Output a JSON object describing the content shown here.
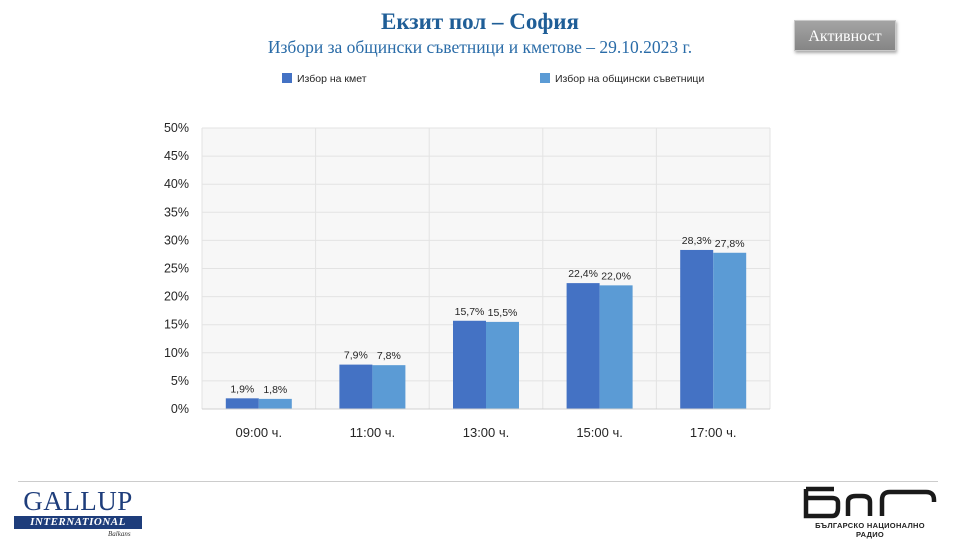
{
  "header": {
    "title": "Екзит пол – София",
    "subtitle": "Избори за общински съветници и кметове – 29.10.2023 г."
  },
  "activity_button": {
    "label": "Активност"
  },
  "chart_data": {
    "type": "bar",
    "categories": [
      "09:00 ч.",
      "11:00 ч.",
      "13:00 ч.",
      "15:00 ч.",
      "17:00 ч."
    ],
    "series": [
      {
        "name": "Избор на кмет",
        "values": [
          1.9,
          7.9,
          15.7,
          22.4,
          28.3
        ],
        "labels": [
          "1,9%",
          "7,9%",
          "15,7%",
          "22,4%",
          "28,3%"
        ],
        "color": "#4472c4"
      },
      {
        "name": "Избор на общински съветници",
        "values": [
          1.8,
          7.8,
          15.5,
          22.0,
          27.8
        ],
        "labels": [
          "1,8%",
          "7,8%",
          "15,5%",
          "22,0%",
          "27,8%"
        ],
        "color": "#5b9bd5"
      }
    ],
    "ylim": [
      0,
      50
    ],
    "yticks": [
      0,
      5,
      10,
      15,
      20,
      25,
      30,
      35,
      40,
      45,
      50
    ],
    "ytick_labels": [
      "0%",
      "5%",
      "10%",
      "15%",
      "20%",
      "25%",
      "30%",
      "35%",
      "40%",
      "45%",
      "50%"
    ],
    "grid": true,
    "legend_position": "top",
    "xlabel": "",
    "ylabel": ""
  },
  "footer": {
    "gallup_logo": {
      "word": "GALLUP",
      "band": "INTERNATIONAL",
      "sub": "Balkans"
    },
    "bnr_logo": {
      "text": "БЪЛГАРСКО НАЦИОНАЛНО РАДИО"
    }
  }
}
